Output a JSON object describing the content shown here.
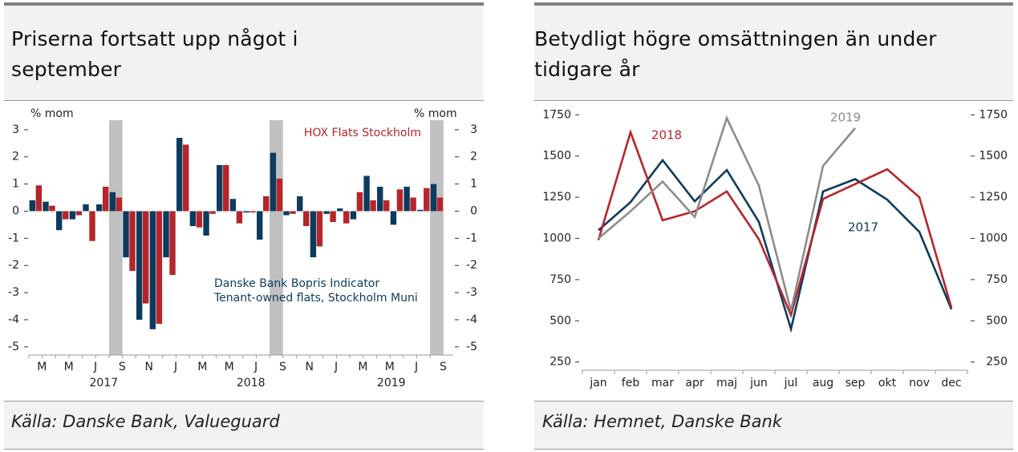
{
  "chart_data": [
    {
      "type": "bar",
      "title": "Priserna fortsatt upp något i september",
      "source": "Källa: Danske Bank, Valueguard",
      "ylabel": "% mom",
      "y2label": "% mom",
      "categories": [
        "M",
        null,
        "M",
        null,
        "J",
        null,
        "S",
        null,
        "N",
        null,
        "J",
        null,
        "M",
        null,
        "M",
        null,
        "J",
        null,
        "S",
        null,
        "N",
        null,
        "J",
        null,
        "M",
        null,
        "M",
        null,
        "J",
        null,
        "S"
      ],
      "years": [
        {
          "label": "2017",
          "from": 0,
          "to": 9
        },
        {
          "label": "2018",
          "from": 10,
          "to": 21
        },
        {
          "label": "2019",
          "from": 22,
          "to": 30
        }
      ],
      "highlight": [
        6,
        18,
        30
      ],
      "ylim": [
        -5.3,
        3.35
      ],
      "yticks": [
        3,
        2,
        1,
        0,
        -1,
        -2,
        -3,
        -4,
        -5
      ],
      "y2lim": [
        -5.3,
        3.35
      ],
      "y2ticks": [
        3,
        2,
        1,
        0,
        -1,
        -2,
        -3,
        -4,
        -5
      ],
      "series": [
        {
          "name": "Danske Bank Bopris Indicator",
          "description": "Tenant-owned flats, Stockholm Muni",
          "color": "#0d3b5e",
          "values": [
            0.4,
            0.35,
            -0.7,
            -0.3,
            0.25,
            0.25,
            0.7,
            -1.7,
            -4.0,
            -4.35,
            -1.7,
            2.7,
            -0.55,
            -0.9,
            1.7,
            0.45,
            -0.05,
            -1.05,
            2.15,
            -0.15,
            0.55,
            -1.7,
            -0.1,
            0.1,
            -0.3,
            1.3,
            0.9,
            -0.5,
            0.9,
            0.05,
            1.0
          ]
        },
        {
          "name": "HOX Flats Stockholm",
          "color": "#b5252b",
          "values": [
            0.95,
            0.2,
            -0.3,
            -0.15,
            -1.1,
            0.9,
            0.5,
            -2.2,
            -3.4,
            -4.15,
            -2.35,
            2.45,
            -0.6,
            -0.1,
            1.7,
            -0.45,
            -0.05,
            0.55,
            1.2,
            -0.1,
            -0.55,
            -1.3,
            -0.4,
            -0.45,
            0.7,
            0.4,
            0.4,
            0.8,
            0.5,
            0.85,
            0.5
          ]
        }
      ]
    },
    {
      "type": "line",
      "title": "Betydligt högre omsättningen än under tidigare år",
      "source": "Källa: Hemnet, Danske Bank",
      "categories": [
        "jan",
        "feb",
        "mar",
        "apr",
        "maj",
        "jun",
        "jul",
        "aug",
        "sep",
        "okt",
        "nov",
        "dec"
      ],
      "ylim": [
        200,
        1800
      ],
      "yticks": [
        1750,
        1500,
        1250,
        1000,
        750,
        500,
        250
      ],
      "y2lim": [
        200,
        1800
      ],
      "y2ticks": [
        1750,
        1500,
        1250,
        1000,
        750,
        500,
        250
      ],
      "series": [
        {
          "name": "2017",
          "color": "#0d3b5e",
          "values": [
            1050,
            1220,
            1475,
            1225,
            1415,
            1100,
            450,
            1285,
            1360,
            1235,
            1040,
            570
          ]
        },
        {
          "name": "2018",
          "color": "#b5252b",
          "values": [
            990,
            1645,
            1110,
            1165,
            1285,
            995,
            535,
            1240,
            1330,
            1420,
            1250,
            580
          ]
        },
        {
          "name": "2019",
          "color": "#8c8c8c",
          "values": [
            1000,
            1165,
            1345,
            1130,
            1730,
            1320,
            560,
            1440,
            1670,
            null,
            null,
            null
          ]
        }
      ]
    }
  ]
}
